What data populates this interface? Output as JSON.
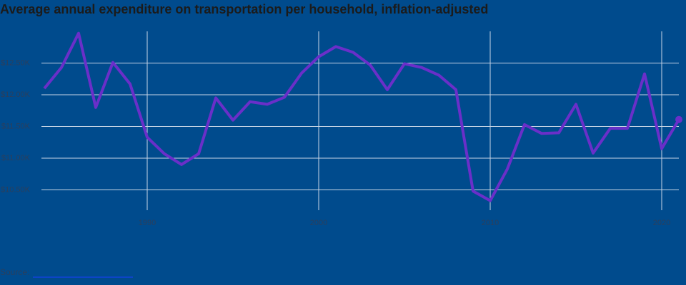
{
  "chart_data": {
    "type": "line",
    "title": "Average annual expenditure on transportation per household, inflation-adjusted",
    "source_label": "Source:",
    "x": [
      1984,
      1985,
      1986,
      1987,
      1988,
      1989,
      1990,
      1991,
      1992,
      1993,
      1994,
      1995,
      1996,
      1997,
      1998,
      1999,
      2000,
      2001,
      2002,
      2003,
      2004,
      2005,
      2006,
      2007,
      2008,
      2009,
      2010,
      2011,
      2012,
      2013,
      2014,
      2015,
      2016,
      2017,
      2018,
      2019,
      2020,
      2021
    ],
    "series": [
      {
        "color": "#6a2fc9",
        "values": [
          12100,
          12430,
          12970,
          11800,
          12510,
          12170,
          11330,
          11070,
          10900,
          11070,
          11950,
          11600,
          11890,
          11850,
          11960,
          12340,
          12600,
          12760,
          12670,
          12470,
          12080,
          12490,
          12430,
          12310,
          12080,
          10480,
          10330,
          10830,
          11530,
          11390,
          11400,
          11850,
          11080,
          11470,
          11470,
          12330,
          11150,
          11610
        ]
      }
    ],
    "xlim": [
      1984,
      2021
    ],
    "xticks": [
      1990,
      2000,
      2010,
      2020
    ],
    "ylim": [
      10180,
      13000
    ],
    "yticks": [
      {
        "value": 10500,
        "label": "$10.50K"
      },
      {
        "value": 11000,
        "label": "$11.00K"
      },
      {
        "value": 11500,
        "label": "$11.50K"
      },
      {
        "value": 12000,
        "label": "$12.00K"
      },
      {
        "value": 12500,
        "label": "$12.50K"
      }
    ],
    "grid": true
  }
}
